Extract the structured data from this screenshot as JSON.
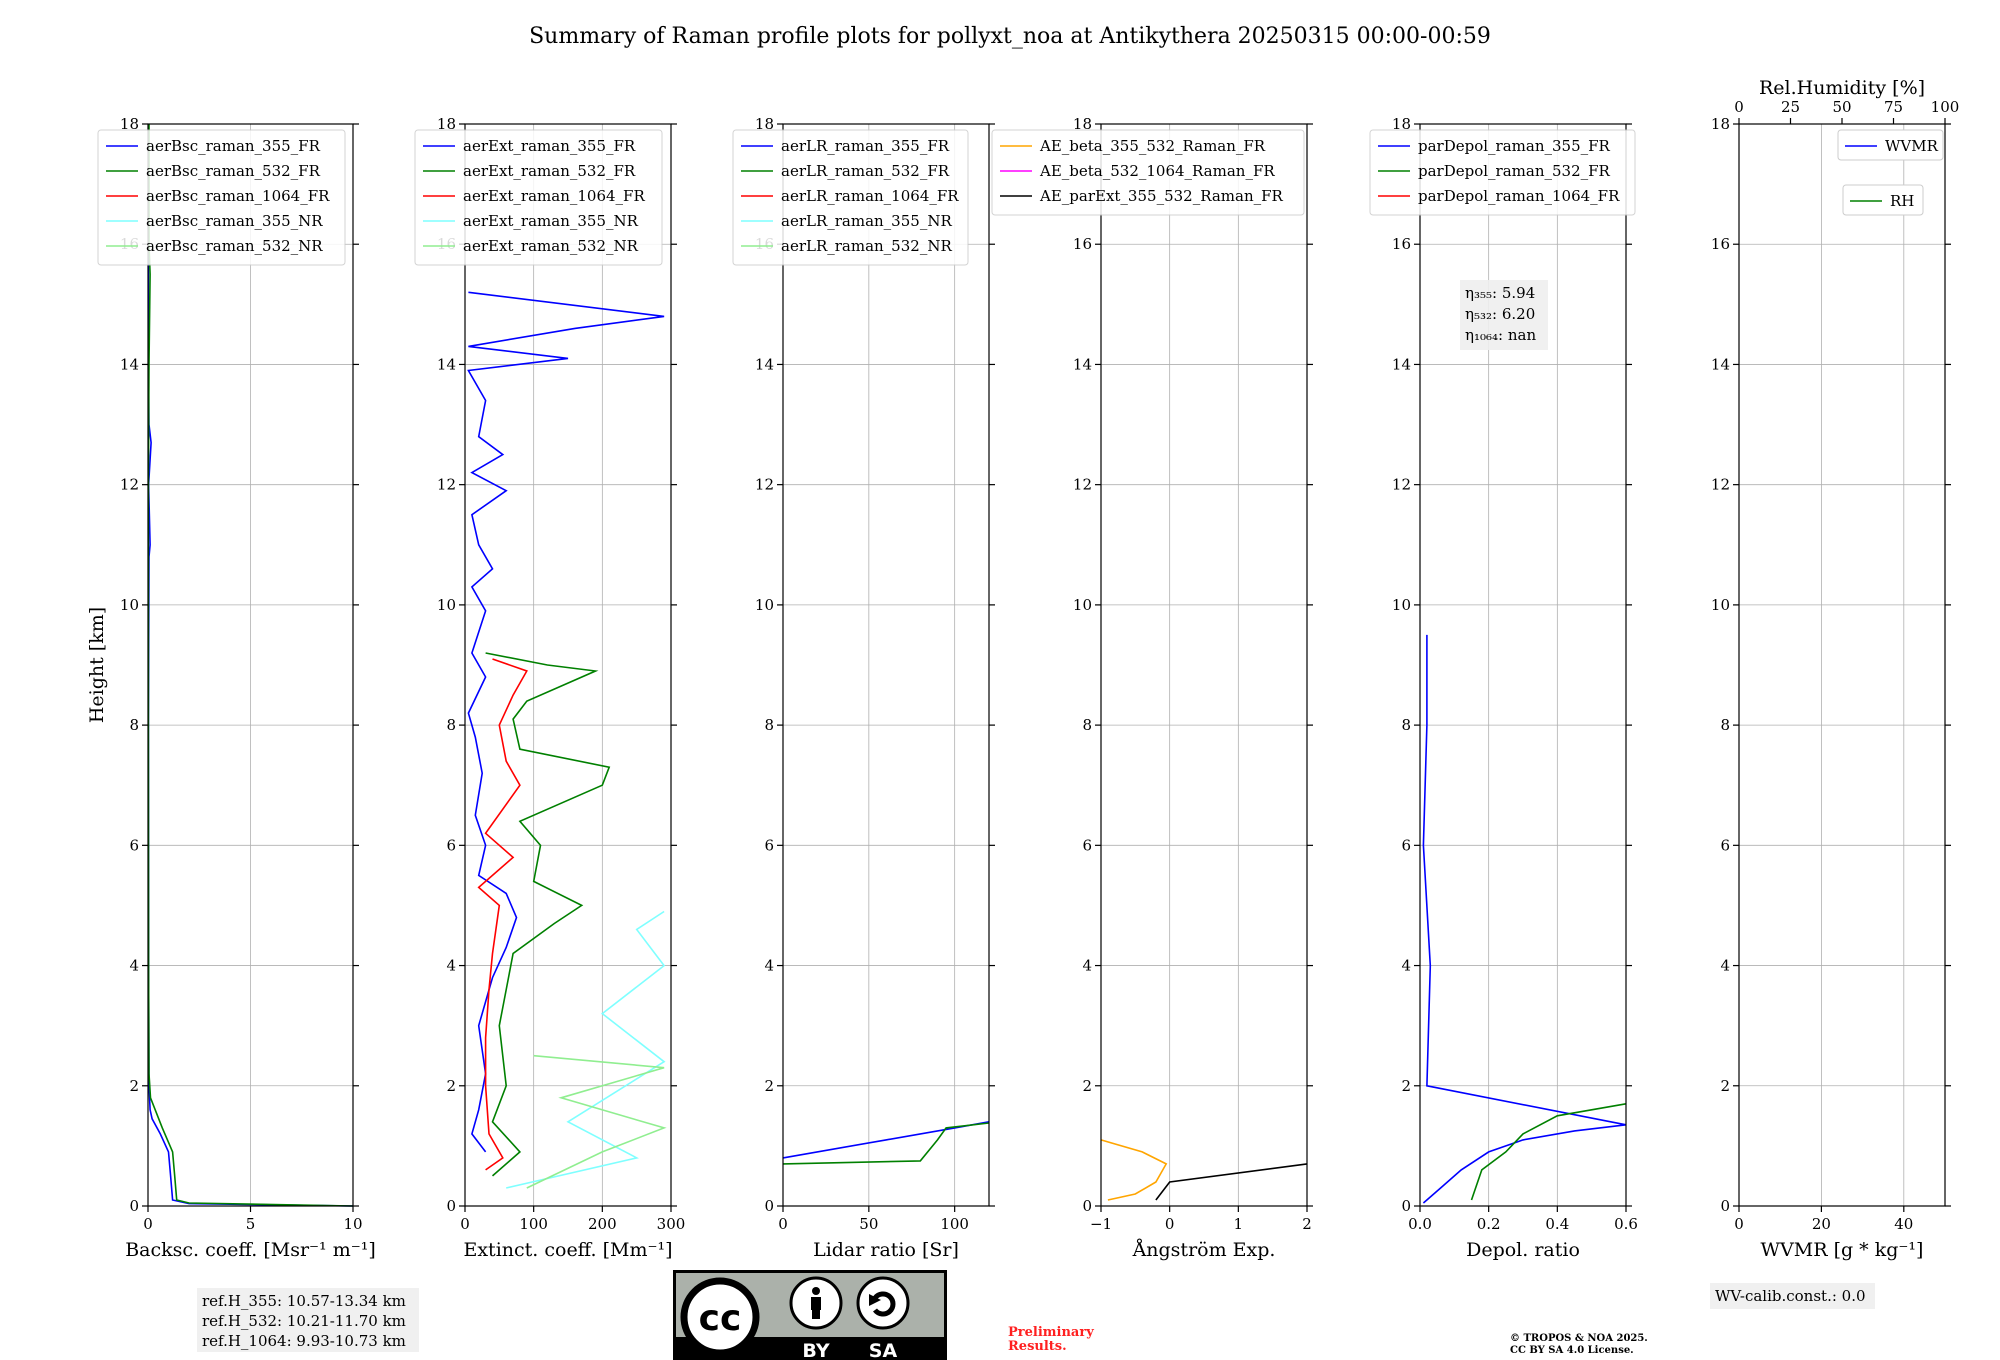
{
  "title": "Summary of Raman profile plots for pollyxt_noa at Antikythera 20250315 00:00-00:59",
  "height_label": "Height [km]",
  "colors": {
    "blue": "#0000ff",
    "green": "#008000",
    "red": "#ff0000",
    "cyan": "#7fffff",
    "lightgreen": "#90ee90",
    "orange": "#ffa500",
    "magenta": "#ff00ff",
    "black": "#000000"
  },
  "chart_data": [
    {
      "type": "line",
      "id": "bsc",
      "xlabel": "Backsc. coeff. [Msr⁻¹ m⁻¹]",
      "xlim": [
        0,
        10
      ],
      "ylim": [
        0,
        18
      ],
      "xticks": [
        "0",
        "5",
        "10"
      ],
      "xtick_values": [
        0,
        5,
        10
      ],
      "yticks": [
        "0",
        "2",
        "4",
        "6",
        "8",
        "10",
        "12",
        "14",
        "16",
        "18"
      ],
      "series": [
        {
          "name": "aerBsc_raman_355_FR",
          "color": "#0000ff",
          "points": [
            [
              10,
              0.0
            ],
            [
              2,
              0.04
            ],
            [
              1.2,
              0.1
            ],
            [
              1.1,
              0.5
            ],
            [
              1.0,
              0.9
            ],
            [
              0.6,
              1.2
            ],
            [
              0.2,
              1.45
            ],
            [
              0.1,
              1.6
            ],
            [
              0.05,
              2.0
            ],
            [
              0.03,
              4
            ],
            [
              0.02,
              8
            ],
            [
              0.05,
              10.8
            ],
            [
              0.1,
              11
            ],
            [
              0.03,
              12
            ],
            [
              0.15,
              12.7
            ],
            [
              0.05,
              13
            ],
            [
              0.02,
              14
            ],
            [
              0.02,
              18
            ]
          ]
        },
        {
          "name": "aerBsc_raman_532_FR",
          "color": "#008000",
          "points": [
            [
              10,
              0.0
            ],
            [
              2,
              0.05
            ],
            [
              1.4,
              0.1
            ],
            [
              1.3,
              0.5
            ],
            [
              1.2,
              0.9
            ],
            [
              0.7,
              1.3
            ],
            [
              0.35,
              1.6
            ],
            [
              0.12,
              1.8
            ],
            [
              0.05,
              2.2
            ],
            [
              0.03,
              4
            ],
            [
              0.02,
              8
            ],
            [
              0.02,
              12
            ],
            [
              0.05,
              14
            ],
            [
              0.1,
              15.5
            ],
            [
              0.05,
              16
            ],
            [
              0.05,
              18
            ]
          ]
        },
        {
          "name": "aerBsc_raman_1064_FR",
          "color": "#ff0000",
          "points": []
        },
        {
          "name": "aerBsc_raman_355_NR",
          "color": "#7fffff",
          "points": []
        },
        {
          "name": "aerBsc_raman_532_NR",
          "color": "#90ee90",
          "points": []
        }
      ],
      "annotation": [
        "ref.H_355: 10.57-13.34 km",
        "ref.H_532: 10.21-11.70 km",
        "ref.H_1064: 9.93-10.73 km"
      ]
    },
    {
      "type": "line",
      "id": "ext",
      "xlabel": "Extinct. coeff. [Mm⁻¹]",
      "xlim": [
        0,
        300
      ],
      "ylim": [
        0,
        18
      ],
      "xticks": [
        "0",
        "100",
        "200",
        "300"
      ],
      "xtick_values": [
        0,
        100,
        200,
        300
      ],
      "yticks": [
        "0",
        "2",
        "4",
        "6",
        "8",
        "10",
        "12",
        "14",
        "16",
        "18"
      ],
      "series": [
        {
          "name": "aerExt_raman_355_FR",
          "color": "#0000ff",
          "points": [
            [
              30,
              0.9
            ],
            [
              10,
              1.2
            ],
            [
              20,
              1.6
            ],
            [
              30,
              2.2
            ],
            [
              20,
              3.0
            ],
            [
              40,
              3.8
            ],
            [
              60,
              4.3
            ],
            [
              75,
              4.8
            ],
            [
              60,
              5.2
            ],
            [
              20,
              5.5
            ],
            [
              30,
              6.0
            ],
            [
              15,
              6.5
            ],
            [
              25,
              7.2
            ],
            [
              15,
              7.8
            ],
            [
              5,
              8.2
            ],
            [
              30,
              8.8
            ],
            [
              10,
              9.2
            ],
            [
              30,
              9.9
            ],
            [
              10,
              10.3
            ],
            [
              40,
              10.6
            ],
            [
              20,
              11.0
            ],
            [
              10,
              11.5
            ],
            [
              60,
              11.9
            ],
            [
              10,
              12.2
            ],
            [
              55,
              12.5
            ],
            [
              20,
              12.8
            ],
            [
              30,
              13.4
            ],
            [
              5,
              13.9
            ],
            [
              150,
              14.1
            ],
            [
              5,
              14.3
            ],
            [
              160,
              14.6
            ],
            [
              290,
              14.8
            ],
            [
              5,
              15.2
            ]
          ]
        },
        {
          "name": "aerExt_raman_532_FR",
          "color": "#008000",
          "points": [
            [
              40,
              0.5
            ],
            [
              80,
              0.9
            ],
            [
              40,
              1.4
            ],
            [
              60,
              2.0
            ],
            [
              50,
              3.0
            ],
            [
              60,
              3.6
            ],
            [
              70,
              4.2
            ],
            [
              130,
              4.7
            ],
            [
              170,
              5.0
            ],
            [
              100,
              5.4
            ],
            [
              110,
              6.0
            ],
            [
              80,
              6.4
            ],
            [
              200,
              7.0
            ],
            [
              210,
              7.3
            ],
            [
              80,
              7.6
            ],
            [
              70,
              8.1
            ],
            [
              90,
              8.4
            ],
            [
              190,
              8.9
            ],
            [
              120,
              9.0
            ],
            [
              30,
              9.2
            ]
          ]
        },
        {
          "name": "aerExt_raman_1064_FR",
          "color": "#ff0000",
          "points": [
            [
              30,
              0.6
            ],
            [
              55,
              0.8
            ],
            [
              35,
              1.2
            ],
            [
              30,
              2.0
            ],
            [
              30,
              2.8
            ],
            [
              35,
              3.6
            ],
            [
              40,
              4.2
            ],
            [
              50,
              5.0
            ],
            [
              20,
              5.3
            ],
            [
              70,
              5.8
            ],
            [
              30,
              6.2
            ],
            [
              80,
              7.0
            ],
            [
              60,
              7.4
            ],
            [
              50,
              8.0
            ],
            [
              70,
              8.5
            ],
            [
              90,
              8.9
            ],
            [
              40,
              9.1
            ]
          ]
        },
        {
          "name": "aerExt_raman_355_NR",
          "color": "#7fffff",
          "points": [
            [
              60,
              0.3
            ],
            [
              250,
              0.8
            ],
            [
              150,
              1.4
            ],
            [
              290,
              2.4
            ],
            [
              200,
              3.2
            ],
            [
              290,
              4.0
            ],
            [
              250,
              4.6
            ],
            [
              290,
              4.9
            ]
          ]
        },
        {
          "name": "aerExt_raman_532_NR",
          "color": "#90ee90",
          "points": [
            [
              90,
              0.3
            ],
            [
              200,
              0.9
            ],
            [
              290,
              1.3
            ],
            [
              140,
              1.8
            ],
            [
              290,
              2.3
            ],
            [
              100,
              2.5
            ]
          ]
        }
      ]
    },
    {
      "type": "line",
      "id": "lr",
      "xlabel": "Lidar ratio [Sr]",
      "xlim": [
        0,
        120
      ],
      "ylim": [
        0,
        18
      ],
      "xticks": [
        "0",
        "50",
        "100"
      ],
      "xtick_values": [
        0,
        50,
        100
      ],
      "yticks": [
        "0",
        "2",
        "4",
        "6",
        "8",
        "10",
        "12",
        "14",
        "16",
        "18"
      ],
      "series": [
        {
          "name": "aerLR_raman_355_FR",
          "color": "#0000ff",
          "points": [
            [
              0,
              0.8
            ],
            [
              60,
              1.1
            ],
            [
              100,
              1.3
            ],
            [
              120,
              1.4
            ]
          ]
        },
        {
          "name": "aerLR_raman_532_FR",
          "color": "#008000",
          "points": [
            [
              0,
              0.7
            ],
            [
              80,
              0.75
            ],
            [
              90,
              1.1
            ],
            [
              95,
              1.3
            ],
            [
              120,
              1.38
            ]
          ]
        },
        {
          "name": "aerLR_raman_1064_FR",
          "color": "#ff0000",
          "points": []
        },
        {
          "name": "aerLR_raman_355_NR",
          "color": "#7fffff",
          "points": []
        },
        {
          "name": "aerLR_raman_532_NR",
          "color": "#90ee90",
          "points": []
        }
      ]
    },
    {
      "type": "line",
      "id": "ae",
      "xlabel": "Ångström Exp.",
      "xlim": [
        -1,
        2
      ],
      "ylim": [
        0,
        18
      ],
      "xticks": [
        "−1",
        "0",
        "1",
        "2"
      ],
      "xtick_values": [
        -1,
        0,
        1,
        2
      ],
      "yticks": [
        "0",
        "2",
        "4",
        "6",
        "8",
        "10",
        "12",
        "14",
        "16",
        "18"
      ],
      "series": [
        {
          "name": "AE_beta_355_532_Raman_FR",
          "color": "#ffa500",
          "points": [
            [
              -0.9,
              0.1
            ],
            [
              -0.5,
              0.2
            ],
            [
              -0.2,
              0.4
            ],
            [
              -0.05,
              0.7
            ],
            [
              -0.4,
              0.9
            ],
            [
              -1,
              1.1
            ]
          ]
        },
        {
          "name": "AE_beta_532_1064_Raman_FR",
          "color": "#ff00ff",
          "points": []
        },
        {
          "name": "AE_parExt_355_532_Raman_FR",
          "color": "#000000",
          "points": [
            [
              -0.2,
              0.1
            ],
            [
              0,
              0.4
            ],
            [
              2,
              0.7
            ]
          ]
        }
      ]
    },
    {
      "type": "line",
      "id": "depol",
      "xlabel": "Depol. ratio",
      "xlim": [
        0,
        0.6
      ],
      "ylim": [
        0,
        18
      ],
      "xticks": [
        "0.0",
        "0.2",
        "0.4",
        "0.6"
      ],
      "xtick_values": [
        0,
        0.2,
        0.4,
        0.6
      ],
      "yticks": [
        "0",
        "2",
        "4",
        "6",
        "8",
        "10",
        "12",
        "14",
        "16",
        "18"
      ],
      "series": [
        {
          "name": "parDepol_raman_355_FR",
          "color": "#0000ff",
          "points": [
            [
              0.01,
              0.05
            ],
            [
              0.06,
              0.3
            ],
            [
              0.12,
              0.6
            ],
            [
              0.2,
              0.9
            ],
            [
              0.3,
              1.1
            ],
            [
              0.45,
              1.25
            ],
            [
              0.6,
              1.35
            ],
            [
              0.02,
              2.0
            ],
            [
              0.03,
              4
            ],
            [
              0.01,
              6
            ],
            [
              0.02,
              8
            ],
            [
              0.02,
              9.5
            ]
          ]
        },
        {
          "name": "parDepol_raman_532_FR",
          "color": "#008000",
          "points": [
            [
              0.15,
              0.1
            ],
            [
              0.18,
              0.6
            ],
            [
              0.25,
              0.9
            ],
            [
              0.3,
              1.2
            ],
            [
              0.4,
              1.5
            ],
            [
              0.6,
              1.7
            ]
          ]
        },
        {
          "name": "parDepol_raman_1064_FR",
          "color": "#ff0000",
          "points": []
        }
      ],
      "annotation": [
        "η₃₅₅: 5.94",
        "η₅₃₂: 6.20",
        "η₁₀₆₄: nan"
      ]
    },
    {
      "type": "line",
      "id": "wv",
      "xlabel": "WVMR [g * kg⁻¹]",
      "top_xlabel": "Rel.Humidity [%]",
      "xlim": [
        0,
        50
      ],
      "top_xlim": [
        0,
        100
      ],
      "ylim": [
        0,
        18
      ],
      "xticks": [
        "0",
        "20",
        "40"
      ],
      "xtick_values": [
        0,
        20,
        40
      ],
      "top_xticks": [
        "0",
        "25",
        "50",
        "75",
        "100"
      ],
      "top_xtick_values": [
        0,
        25,
        50,
        75,
        100
      ],
      "yticks": [
        "0",
        "2",
        "4",
        "6",
        "8",
        "10",
        "12",
        "14",
        "16",
        "18"
      ],
      "series": [
        {
          "name": "WVMR",
          "color": "#0000ff",
          "points": []
        },
        {
          "name": "RH",
          "color": "#008000",
          "points": []
        }
      ],
      "annotation": [
        "WV-calib.const.: 0.0"
      ]
    }
  ],
  "footer": {
    "cc_letters": "cc",
    "cc_by": "BY",
    "cc_sa": "SA",
    "preliminary_line1": "Preliminary",
    "preliminary_line2": "Results.",
    "copyright_line1": "© TROPOS & NOA 2025.",
    "copyright_line2": "CC BY SA 4.0 License."
  }
}
